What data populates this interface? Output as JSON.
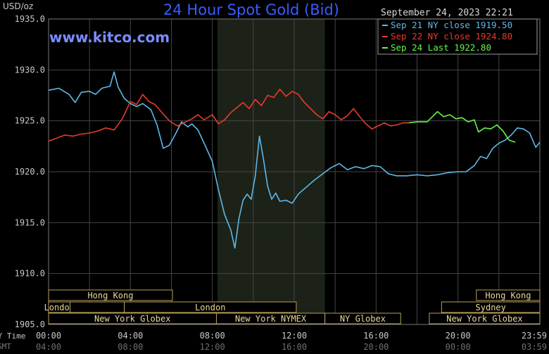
{
  "chart_data": {
    "type": "line",
    "title": "24 Hour Spot Gold (Bid)",
    "ylabel": "USD/oz",
    "watermark": "www.kitco.com",
    "timestamp": "September 24, 2023 22:21",
    "ylim": [
      1905,
      1935
    ],
    "xlim": [
      0,
      24
    ],
    "y_ticks": [
      "1935.0",
      "1930.0",
      "1925.0",
      "1920.0",
      "1915.0",
      "1910.0",
      "1905.0"
    ],
    "y_tick_values": [
      1935,
      1930,
      1925,
      1920,
      1915,
      1910,
      1905
    ],
    "x_ticks_ny": [
      "00:00",
      "04:00",
      "08:00",
      "12:00",
      "16:00",
      "20:00",
      "23:59"
    ],
    "x_ticks_gmt": [
      "04:00",
      "08:00",
      "12:00",
      "16:00",
      "20:00",
      "00:00",
      "03:59"
    ],
    "x_tick_values": [
      0,
      4,
      8,
      12,
      16,
      20,
      23.98
    ],
    "axis_row_label_ny": "NY Time",
    "axis_row_label_gmt": "GMT",
    "grid": true,
    "legend_position": "top-right",
    "shaded_range": [
      8.25,
      13.5
    ],
    "colors": {
      "background": "#000000",
      "shade": "#1c2218",
      "title": "#3a5cff",
      "watermark": "#7a8dff",
      "grid": "#444444",
      "axis_text": "#c8c8c8",
      "session_fill": "#000000",
      "session_border": "#b8a05a",
      "session_text": "#e8d79a"
    },
    "series": [
      {
        "name": "Sep 21 NY close 1919.50",
        "color": "#5fb8e8",
        "x": [
          0,
          0.5,
          1,
          1.3,
          1.6,
          2,
          2.3,
          2.6,
          3,
          3.2,
          3.4,
          3.7,
          4,
          4.3,
          4.6,
          5,
          5.3,
          5.6,
          5.9,
          6.2,
          6.5,
          6.8,
          7,
          7.3,
          7.6,
          8,
          8.3,
          8.6,
          8.9,
          9.1,
          9.3,
          9.5,
          9.7,
          9.9,
          10.1,
          10.3,
          10.5,
          10.7,
          10.9,
          11.1,
          11.3,
          11.6,
          11.9,
          12.2,
          12.6,
          13,
          13.4,
          13.8,
          14.2,
          14.6,
          15,
          15.4,
          15.8,
          16.2,
          16.6,
          17,
          17.5,
          18,
          18.5,
          19,
          19.5,
          20,
          20.4,
          20.8,
          21.1,
          21.4,
          21.7,
          22,
          22.3,
          22.6,
          22.9,
          23.2,
          23.5,
          23.8,
          24
        ],
        "y": [
          1928,
          1928.2,
          1927.6,
          1926.8,
          1927.8,
          1927.9,
          1927.6,
          1928.2,
          1928.4,
          1929.8,
          1928.3,
          1927.2,
          1926.7,
          1926.4,
          1926.7,
          1926.1,
          1924.6,
          1922.3,
          1922.6,
          1923.7,
          1924.9,
          1924.4,
          1924.7,
          1924.1,
          1922.8,
          1921,
          1918.2,
          1915.8,
          1914.3,
          1912.5,
          1915.4,
          1917.2,
          1917.8,
          1917.3,
          1919.6,
          1923.5,
          1921.2,
          1918.6,
          1917.3,
          1917.9,
          1917.1,
          1917.2,
          1916.9,
          1917.8,
          1918.5,
          1919.2,
          1919.8,
          1920.4,
          1920.8,
          1920.2,
          1920.5,
          1920.3,
          1920.6,
          1920.5,
          1919.8,
          1919.6,
          1919.6,
          1919.7,
          1919.6,
          1919.7,
          1919.9,
          1920,
          1920,
          1920.6,
          1921.5,
          1921.3,
          1922.3,
          1922.8,
          1923.1,
          1923.6,
          1924.3,
          1924.2,
          1923.8,
          1922.4,
          1922.9
        ]
      },
      {
        "name": "Sep 22 NY close 1924.80",
        "color": "#e63b2e",
        "x": [
          0,
          0.4,
          0.8,
          1.2,
          1.6,
          2,
          2.4,
          2.8,
          3.2,
          3.6,
          4,
          4.3,
          4.6,
          4.9,
          5.2,
          5.5,
          5.9,
          6.3,
          6.6,
          7,
          7.3,
          7.6,
          8,
          8.3,
          8.6,
          8.9,
          9.2,
          9.5,
          9.8,
          10.1,
          10.4,
          10.7,
          11,
          11.3,
          11.6,
          11.9,
          12.2,
          12.5,
          12.8,
          13.1,
          13.4,
          13.7,
          14,
          14.3,
          14.6,
          14.9,
          15.2,
          15.5,
          15.8,
          16.1,
          16.4,
          16.7,
          17,
          17.3,
          17.6
        ],
        "y": [
          1923,
          1923.3,
          1923.6,
          1923.5,
          1923.7,
          1923.8,
          1924,
          1924.3,
          1924.1,
          1925.2,
          1926.9,
          1926.6,
          1927.6,
          1926.9,
          1926.6,
          1925.9,
          1925,
          1924.5,
          1924.8,
          1925.2,
          1925.6,
          1925.1,
          1925.6,
          1924.7,
          1925.1,
          1925.8,
          1926.3,
          1926.8,
          1926.2,
          1927.1,
          1926.5,
          1927.5,
          1927.3,
          1928.1,
          1927.4,
          1927.9,
          1927.6,
          1926.8,
          1926.2,
          1925.6,
          1925.2,
          1925.9,
          1925.6,
          1925.1,
          1925.5,
          1926.2,
          1925.4,
          1924.7,
          1924.2,
          1924.5,
          1924.8,
          1924.5,
          1924.6,
          1924.8,
          1924.8
        ]
      },
      {
        "name": "Sep 24 Last 1922.80",
        "color": "#6cf24a",
        "x": [
          17.6,
          18,
          18.5,
          19,
          19.3,
          19.6,
          19.9,
          20.2,
          20.5,
          20.8,
          21,
          21.3,
          21.6,
          21.9,
          22.2,
          22.5,
          22.8
        ],
        "y": [
          1924.8,
          1924.9,
          1924.9,
          1925.9,
          1925.4,
          1925.6,
          1925.2,
          1925.3,
          1924.9,
          1925.1,
          1923.9,
          1924.3,
          1924.2,
          1924.6,
          1924,
          1923.1,
          1922.9
        ]
      }
    ],
    "sessions": [
      {
        "label": "Hong Kong",
        "row": 0,
        "start": 0,
        "end": 6.05
      },
      {
        "label": "London",
        "row": 1,
        "start": 0,
        "end": 1.05
      },
      {
        "label": "",
        "row": 1,
        "start": 1.05,
        "end": 3.7
      },
      {
        "label": "London",
        "row": 1,
        "start": 3.7,
        "end": 12.1
      },
      {
        "label": "New York Globex",
        "row": 2,
        "start": 0,
        "end": 8.2
      },
      {
        "label": "New York NYMEX",
        "row": 2,
        "start": 8.2,
        "end": 13.5
      },
      {
        "label": "NY Globex",
        "row": 2,
        "start": 13.5,
        "end": 17.2
      },
      {
        "label": "Hong Kong",
        "row": 0,
        "start": 20.9,
        "end": 24
      },
      {
        "label": "Sydney",
        "row": 1,
        "start": 19.2,
        "end": 24
      },
      {
        "label": "New York Globex",
        "row": 2,
        "start": 18.6,
        "end": 24
      }
    ]
  }
}
